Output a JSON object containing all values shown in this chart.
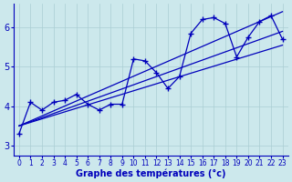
{
  "bg_color": "#cce8ec",
  "grid_color": "#aacdd3",
  "line_color": "#0000bb",
  "xlabel": "Graphe des températures (°c)",
  "xlim": [
    -0.5,
    23.5
  ],
  "ylim": [
    2.75,
    6.6
  ],
  "yticks": [
    3,
    4,
    5,
    6
  ],
  "xticks": [
    0,
    1,
    2,
    3,
    4,
    5,
    6,
    7,
    8,
    9,
    10,
    11,
    12,
    13,
    14,
    15,
    16,
    17,
    18,
    19,
    20,
    21,
    22,
    23
  ],
  "data_line": [
    3.3,
    4.1,
    3.9,
    4.1,
    4.15,
    4.3,
    4.05,
    3.9,
    4.05,
    4.05,
    5.2,
    5.15,
    4.85,
    4.45,
    4.75,
    5.85,
    6.2,
    6.25,
    6.1,
    5.25,
    5.75,
    6.15,
    6.3,
    5.7
  ],
  "trend_lines": [
    [
      [
        0,
        23
      ],
      [
        3.5,
        6.4
      ]
    ],
    [
      [
        0,
        23
      ],
      [
        3.5,
        5.9
      ]
    ],
    [
      [
        0,
        23
      ],
      [
        3.5,
        5.55
      ]
    ]
  ]
}
